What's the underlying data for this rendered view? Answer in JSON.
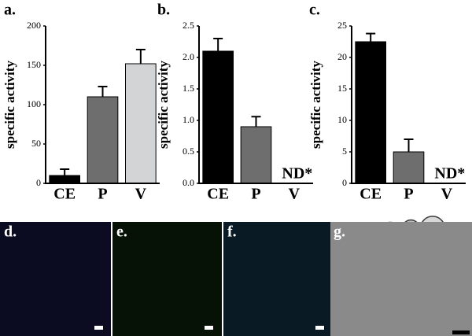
{
  "chart_data": [
    {
      "type": "bar",
      "title": "a.",
      "y_label": "specific activity",
      "categories": [
        "CE",
        "P",
        "V"
      ],
      "values": [
        10,
        110,
        152
      ],
      "errors": [
        8,
        13,
        18
      ],
      "colors": [
        "#000000",
        "#6e6e6e",
        "#d2d4d6"
      ],
      "ylim": [
        0,
        200
      ],
      "yticks": [
        0,
        50,
        100,
        150,
        200
      ]
    },
    {
      "type": "bar",
      "title": "b.",
      "y_label": "specific activity",
      "categories": [
        "CE",
        "P",
        "V"
      ],
      "values": [
        2.1,
        0.9,
        null
      ],
      "value_labels": [
        null,
        null,
        "ND*"
      ],
      "errors": [
        0.2,
        0.16,
        null
      ],
      "colors": [
        "#000000",
        "#6e6e6e",
        "#d2d4d6"
      ],
      "ylim": [
        0,
        2.5
      ],
      "yticks": [
        {
          "value": 0,
          "label": "0.0"
        },
        0.5,
        {
          "value": 1,
          "label": "1.0"
        },
        1.5,
        {
          "value": 2,
          "label": "2.0"
        },
        2.5
      ]
    },
    {
      "type": "bar",
      "title": "c.",
      "y_label": "specific activity",
      "categories": [
        "CE",
        "P",
        "V"
      ],
      "values": [
        22.5,
        5,
        null
      ],
      "value_labels": [
        null,
        null,
        "ND*"
      ],
      "errors": [
        1.3,
        2,
        null
      ],
      "colors": [
        "#000000",
        "#6e6e6e",
        "#d2d4d6"
      ],
      "ylim": [
        0,
        25
      ],
      "yticks": [
        0,
        5,
        10,
        15,
        20,
        25
      ]
    }
  ],
  "image_panels": [
    {
      "label": "d."
    },
    {
      "label": "e."
    },
    {
      "label": "f."
    },
    {
      "label": "g."
    }
  ]
}
